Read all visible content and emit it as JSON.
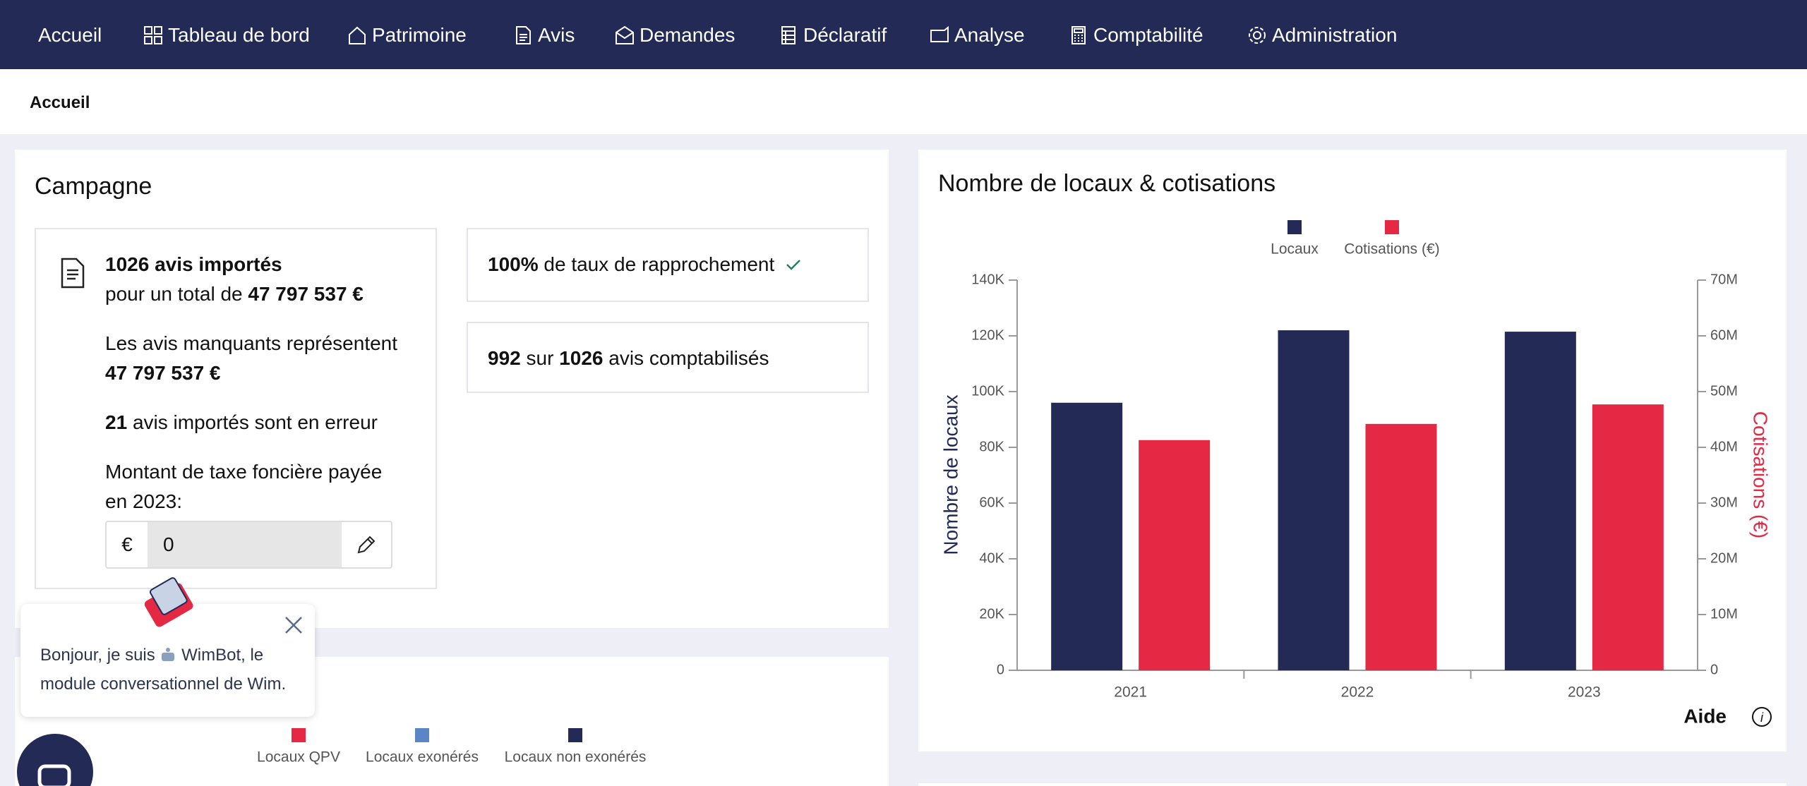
{
  "nav": {
    "items": [
      "Accueil",
      "Tableau de bord",
      "Patrimoine",
      "Avis",
      "Demandes",
      "Déclaratif",
      "Analyse",
      "Comptabilité",
      "Administration"
    ]
  },
  "breadcrumb": "Accueil",
  "campaign": {
    "title": "Campagne",
    "imported": {
      "headline": "1026 avis importés",
      "total_prefix": "pour un total de",
      "total": "47 797 537 €"
    },
    "missing": {
      "text": "Les avis manquants représentent",
      "amount": "47 797 537 €"
    },
    "errors": {
      "count": "21",
      "text": "avis importés sont en erreur"
    },
    "tax": {
      "label": "Montant de taxe foncière payée en 2023:",
      "currency": "€",
      "value": "0"
    },
    "reconciliation": {
      "rate": "100%",
      "text": "de taux de rapprochement"
    },
    "accounted": {
      "count": "992",
      "middle": "sur",
      "total": "1026",
      "text": "avis comptabilisés"
    }
  },
  "chat": {
    "message_start": "Bonjour, je suis",
    "message_end": "WimBot, le module conversationnel de Wim."
  },
  "bottom_legend": [
    {
      "name": "Locaux QPV",
      "color": "#e52843"
    },
    {
      "name": "Locaux exonérés",
      "color": "#5b86c5"
    },
    {
      "name": "Locaux non exonérés",
      "color": "#222a55"
    }
  ],
  "aide": "Aide",
  "chart_data": {
    "type": "bar",
    "title": "Nombre de locaux & cotisations",
    "categories": [
      "2021",
      "2022",
      "2023"
    ],
    "series": [
      {
        "name": "Locaux",
        "color": "#222a55",
        "values": [
          96000,
          122000,
          121500
        ]
      },
      {
        "name": "Cotisations (€)",
        "color": "#e52843",
        "axis": "y2",
        "values": [
          41300000,
          44200000,
          47700000
        ]
      }
    ],
    "ylabel": "Nombre de locaux",
    "y2label": "Cotisations (€)",
    "ylim": [
      0,
      140000
    ],
    "yticks": [
      0,
      {
        "value": 20000,
        "label": "20K"
      },
      {
        "value": 40000,
        "label": "40K"
      },
      {
        "value": 60000,
        "label": "60K"
      },
      {
        "value": 80000,
        "label": "80K"
      },
      {
        "value": 100000,
        "label": "100K"
      },
      {
        "value": 120000,
        "label": "120K"
      },
      {
        "value": 140000,
        "label": "140K"
      }
    ],
    "y2lim": [
      0,
      70000000
    ],
    "y2ticks": [
      0,
      {
        "value": 10000000,
        "label": "10M"
      },
      {
        "value": 20000000,
        "label": "20M"
      },
      {
        "value": 30000000,
        "label": "30M"
      },
      {
        "value": 40000000,
        "label": "40M"
      },
      {
        "value": 50000000,
        "label": "50M"
      },
      {
        "value": 60000000,
        "label": "60M"
      },
      {
        "value": 70000000,
        "label": "70M"
      }
    ],
    "grid": false,
    "legend": "top"
  }
}
